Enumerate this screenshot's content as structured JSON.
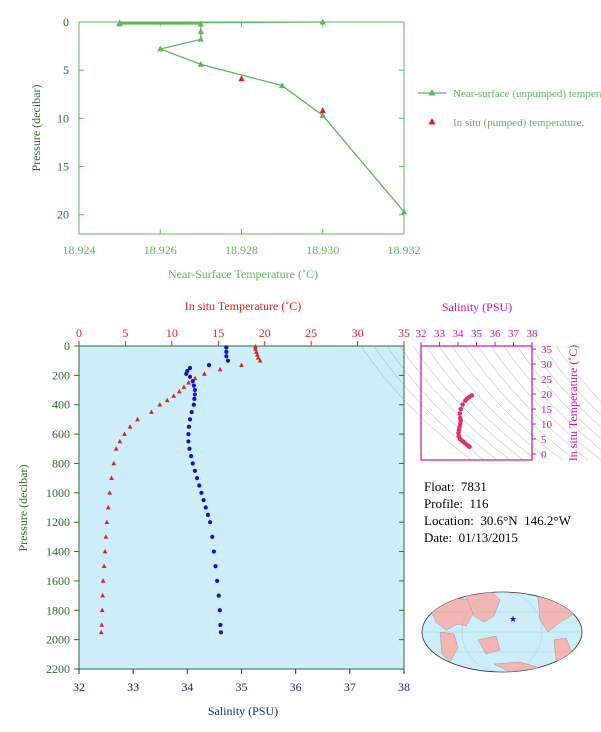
{
  "colors": {
    "green": "#5cb85c",
    "green_dark": "#2f6b2f",
    "red": "#e0201e",
    "blue": "#1010d0",
    "magenta": "#cc11aa",
    "navy": "#1c2a7a",
    "panel_bg": "#cdeef8",
    "map_ocean": "#cdeef8",
    "map_land": "#f4b6b3"
  },
  "chart_data": [
    {
      "type": "line",
      "xlabel": "Near-Surface Temperature (˚C)",
      "ylabel": "Pressure (decibar)",
      "xlim": [
        18.924,
        18.932
      ],
      "ylim": [
        0,
        22
      ],
      "x_ticks": [
        "18.924",
        "18.926",
        "18.928",
        "18.930",
        "18.932"
      ],
      "y_ticks": [
        "0",
        "5",
        "10",
        "15",
        "20"
      ],
      "legend_position": "right",
      "series": [
        {
          "name": "Near-surface (unpumped) temperature.",
          "marker": "triangle",
          "points": [
            [
              18.93,
              0.0
            ],
            [
              18.925,
              0.1
            ],
            [
              18.925,
              0.2
            ],
            [
              18.927,
              0.2
            ],
            [
              18.927,
              1.0
            ],
            [
              18.927,
              1.8
            ],
            [
              18.926,
              2.8
            ],
            [
              18.927,
              4.4
            ],
            [
              18.929,
              6.6
            ],
            [
              18.93,
              9.7
            ],
            [
              18.932,
              19.7
            ]
          ]
        },
        {
          "name": "In situ (pumped) temperature.",
          "marker": "triangle",
          "points": [
            [
              18.928,
              5.9
            ],
            [
              18.93,
              9.2
            ]
          ]
        }
      ]
    },
    {
      "type": "scatter",
      "title_top": "In situ Temperature (˚C)",
      "xlabel": "Salinity (PSU)",
      "ylabel": "Pressure (decibar)",
      "temp_lim": [
        0,
        35
      ],
      "sal_lim": [
        32,
        38
      ],
      "pressure_lim": [
        0,
        2200
      ],
      "temp_ticks": [
        "0",
        "5",
        "10",
        "15",
        "20",
        "25",
        "30",
        "35"
      ],
      "sal_ticks": [
        "32",
        "33",
        "34",
        "35",
        "36",
        "37",
        "38"
      ],
      "pressure_ticks": [
        "0",
        "200",
        "400",
        "600",
        "800",
        "1000",
        "1200",
        "1400",
        "1600",
        "1800",
        "2000",
        "2200"
      ],
      "temperature_profile": [
        [
          19.0,
          5
        ],
        [
          19.0,
          20
        ],
        [
          19.1,
          40
        ],
        [
          19.2,
          60
        ],
        [
          19.3,
          80
        ],
        [
          19.5,
          100
        ],
        [
          17.5,
          130
        ],
        [
          15.2,
          160
        ],
        [
          13.5,
          190
        ],
        [
          12.5,
          220
        ],
        [
          11.8,
          250
        ],
        [
          11.3,
          280
        ],
        [
          10.8,
          310
        ],
        [
          10.2,
          340
        ],
        [
          9.5,
          370
        ],
        [
          8.7,
          400
        ],
        [
          7.8,
          450
        ],
        [
          6.3,
          500
        ],
        [
          5.5,
          550
        ],
        [
          4.9,
          600
        ],
        [
          4.4,
          650
        ],
        [
          4.0,
          700
        ],
        [
          3.75,
          800
        ],
        [
          3.5,
          900
        ],
        [
          3.3,
          1000
        ],
        [
          3.15,
          1100
        ],
        [
          3.0,
          1200
        ],
        [
          2.9,
          1300
        ],
        [
          2.8,
          1400
        ],
        [
          2.7,
          1500
        ],
        [
          2.6,
          1600
        ],
        [
          2.55,
          1700
        ],
        [
          2.5,
          1800
        ],
        [
          2.45,
          1900
        ],
        [
          2.4,
          1950
        ]
      ],
      "salinity_profile": [
        [
          34.72,
          10
        ],
        [
          34.72,
          40
        ],
        [
          34.72,
          70
        ],
        [
          34.75,
          100
        ],
        [
          34.4,
          130
        ],
        [
          34.05,
          150
        ],
        [
          34.0,
          170
        ],
        [
          33.98,
          190
        ],
        [
          34.05,
          210
        ],
        [
          34.1,
          240
        ],
        [
          34.12,
          270
        ],
        [
          34.14,
          300
        ],
        [
          34.14,
          330
        ],
        [
          34.13,
          360
        ],
        [
          34.12,
          400
        ],
        [
          34.08,
          450
        ],
        [
          34.05,
          500
        ],
        [
          34.03,
          550
        ],
        [
          34.02,
          600
        ],
        [
          34.02,
          650
        ],
        [
          34.04,
          700
        ],
        [
          34.07,
          750
        ],
        [
          34.1,
          800
        ],
        [
          34.14,
          850
        ],
        [
          34.18,
          900
        ],
        [
          34.22,
          950
        ],
        [
          34.26,
          1000
        ],
        [
          34.3,
          1050
        ],
        [
          34.34,
          1100
        ],
        [
          34.38,
          1150
        ],
        [
          34.42,
          1200
        ],
        [
          34.46,
          1300
        ],
        [
          34.49,
          1400
        ],
        [
          34.52,
          1500
        ],
        [
          34.55,
          1600
        ],
        [
          34.58,
          1700
        ],
        [
          34.6,
          1800
        ],
        [
          34.61,
          1900
        ],
        [
          34.62,
          1950
        ]
      ]
    },
    {
      "type": "scatter",
      "title_top": "Salinity (PSU)",
      "ylabel": "In situ Temperature (˚C)",
      "sal_lim": [
        32,
        38
      ],
      "temp_lim": [
        -2,
        36
      ],
      "sal_ticks": [
        "32",
        "33",
        "34",
        "35",
        "36",
        "37",
        "38"
      ],
      "temp_ticks": [
        "0",
        "5",
        "10",
        "15",
        "20",
        "25",
        "30",
        "35"
      ],
      "ts_points": [
        [
          34.75,
          19.5
        ],
        [
          34.6,
          19.0
        ],
        [
          34.5,
          18.5
        ],
        [
          34.4,
          17.8
        ],
        [
          34.25,
          16.5
        ],
        [
          34.15,
          15.0
        ],
        [
          34.1,
          13.5
        ],
        [
          34.12,
          12.0
        ],
        [
          34.14,
          11.0
        ],
        [
          34.12,
          10.0
        ],
        [
          34.08,
          9.0
        ],
        [
          34.05,
          8.0
        ],
        [
          34.03,
          7.0
        ],
        [
          34.04,
          6.0
        ],
        [
          34.1,
          5.0
        ],
        [
          34.2,
          4.5
        ],
        [
          34.3,
          4.0
        ],
        [
          34.4,
          3.5
        ],
        [
          34.5,
          3.0
        ],
        [
          34.58,
          2.6
        ],
        [
          34.62,
          2.4
        ]
      ]
    }
  ],
  "float_info": {
    "float_label": "Float:  7831",
    "profile_label": "Profile:  116",
    "location_label": "Location:  30.6°N  146.2°W",
    "date_label": "Date:  01/13/2015"
  }
}
